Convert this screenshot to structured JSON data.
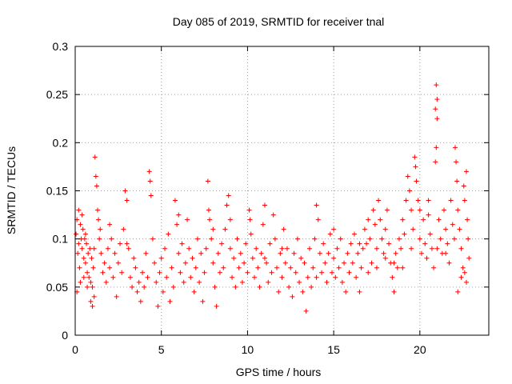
{
  "chart_data": {
    "type": "scatter",
    "title": "Day 085 of 2019, SRMTID for receiver tnal",
    "xlabel": "GPS time / hours",
    "ylabel": "SRMTID / TECUs",
    "xlim": [
      0,
      24
    ],
    "ylim": [
      0,
      0.3
    ],
    "xticks": [
      0,
      5,
      10,
      15,
      20
    ],
    "xtick_labels": [
      "0",
      "5",
      "10",
      "15",
      "20"
    ],
    "yticks": [
      0,
      0.05,
      0.1,
      0.15,
      0.2,
      0.25,
      0.3
    ],
    "ytick_labels": [
      "0",
      "0.05",
      "0.1",
      "0.15",
      "0.2",
      "0.25",
      "0.3"
    ],
    "grid": true,
    "marker": "+",
    "color": "#ff0000",
    "series": [
      {
        "name": "SRMTID",
        "points": [
          [
            0.05,
            0.105
          ],
          [
            0.1,
            0.12
          ],
          [
            0.15,
            0.085
          ],
          [
            0.2,
            0.095
          ],
          [
            0.25,
            0.07
          ],
          [
            0.3,
            0.115
          ],
          [
            0.35,
            0.1
          ],
          [
            0.4,
            0.09
          ],
          [
            0.45,
            0.11
          ],
          [
            0.5,
            0.08
          ],
          [
            0.55,
            0.1
          ],
          [
            0.6,
            0.075
          ],
          [
            0.65,
            0.095
          ],
          [
            0.7,
            0.065
          ],
          [
            0.75,
            0.085
          ],
          [
            0.8,
            0.06
          ],
          [
            0.85,
            0.09
          ],
          [
            0.9,
            0.055
          ],
          [
            0.95,
            0.08
          ],
          [
            1.0,
            0.05
          ],
          [
            1.05,
            0.07
          ],
          [
            1.1,
            0.09
          ],
          [
            1.15,
            0.185
          ],
          [
            1.2,
            0.165
          ],
          [
            1.25,
            0.155
          ],
          [
            1.3,
            0.13
          ],
          [
            1.35,
            0.12
          ],
          [
            1.4,
            0.1
          ],
          [
            1.45,
            0.11
          ],
          [
            1.5,
            0.085
          ],
          [
            0.1,
            0.045
          ],
          [
            0.3,
            0.055
          ],
          [
            0.5,
            0.06
          ],
          [
            0.7,
            0.05
          ],
          [
            0.9,
            0.035
          ],
          [
            1.0,
            0.03
          ],
          [
            1.1,
            0.04
          ],
          [
            0.2,
            0.13
          ],
          [
            0.4,
            0.125
          ],
          [
            0.6,
            0.105
          ],
          [
            1.6,
            0.065
          ],
          [
            1.7,
            0.075
          ],
          [
            1.8,
            0.055
          ],
          [
            1.9,
            0.09
          ],
          [
            2.0,
            0.07
          ],
          [
            2.1,
            0.1
          ],
          [
            2.2,
            0.06
          ],
          [
            2.3,
            0.085
          ],
          [
            2.4,
            0.04
          ],
          [
            2.5,
            0.075
          ],
          [
            2.6,
            0.095
          ],
          [
            2.7,
            0.065
          ],
          [
            2.8,
            0.11
          ],
          [
            2.9,
            0.15
          ],
          [
            3.0,
            0.14
          ],
          [
            3.1,
            0.09
          ],
          [
            3.2,
            0.06
          ],
          [
            3.3,
            0.05
          ],
          [
            3.4,
            0.08
          ],
          [
            3.5,
            0.07
          ],
          [
            3.6,
            0.045
          ],
          [
            3.7,
            0.055
          ],
          [
            3.8,
            0.035
          ],
          [
            3.9,
            0.065
          ],
          [
            4.0,
            0.05
          ],
          [
            4.1,
            0.085
          ],
          [
            4.2,
            0.06
          ],
          [
            4.3,
            0.17
          ],
          [
            4.35,
            0.16
          ],
          [
            4.4,
            0.145
          ],
          [
            4.5,
            0.1
          ],
          [
            4.6,
            0.075
          ],
          [
            4.7,
            0.055
          ],
          [
            4.8,
            0.03
          ],
          [
            4.9,
            0.065
          ],
          [
            5.0,
            0.08
          ],
          [
            5.1,
            0.045
          ],
          [
            5.2,
            0.09
          ],
          [
            5.3,
            0.06
          ],
          [
            5.4,
            0.105
          ],
          [
            5.5,
            0.035
          ],
          [
            5.6,
            0.07
          ],
          [
            5.7,
            0.05
          ],
          [
            5.8,
            0.14
          ],
          [
            5.9,
            0.115
          ],
          [
            6.0,
            0.085
          ],
          [
            6.1,
            0.065
          ],
          [
            6.2,
            0.095
          ],
          [
            6.3,
            0.055
          ],
          [
            6.4,
            0.075
          ],
          [
            6.5,
            0.12
          ],
          [
            6.6,
            0.09
          ],
          [
            6.7,
            0.06
          ],
          [
            6.8,
            0.08
          ],
          [
            6.9,
            0.045
          ],
          [
            7.0,
            0.07
          ],
          [
            7.1,
            0.1
          ],
          [
            7.2,
            0.055
          ],
          [
            7.3,
            0.085
          ],
          [
            7.4,
            0.035
          ],
          [
            7.5,
            0.065
          ],
          [
            7.6,
            0.09
          ],
          [
            7.7,
            0.16
          ],
          [
            7.75,
            0.13
          ],
          [
            7.8,
            0.12
          ],
          [
            7.9,
            0.1
          ],
          [
            8.0,
            0.075
          ],
          [
            8.1,
            0.05
          ],
          [
            8.2,
            0.03
          ],
          [
            8.3,
            0.085
          ],
          [
            8.4,
            0.065
          ],
          [
            8.5,
            0.095
          ],
          [
            8.6,
            0.07
          ],
          [
            8.7,
            0.11
          ],
          [
            8.8,
            0.135
          ],
          [
            8.9,
            0.145
          ],
          [
            9.0,
            0.09
          ],
          [
            9.1,
            0.06
          ],
          [
            9.2,
            0.08
          ],
          [
            9.3,
            0.05
          ],
          [
            9.4,
            0.1
          ],
          [
            9.5,
            0.07
          ],
          [
            9.6,
            0.085
          ],
          [
            9.7,
            0.055
          ],
          [
            9.8,
            0.075
          ],
          [
            9.9,
            0.095
          ],
          [
            10.0,
            0.065
          ],
          [
            10.1,
            0.13
          ],
          [
            10.15,
            0.12
          ],
          [
            10.2,
            0.105
          ],
          [
            10.3,
            0.08
          ],
          [
            10.4,
            0.06
          ],
          [
            10.5,
            0.09
          ],
          [
            10.6,
            0.07
          ],
          [
            10.7,
            0.05
          ],
          [
            10.8,
            0.085
          ],
          [
            10.9,
            0.115
          ],
          [
            11.0,
            0.135
          ],
          [
            11.1,
            0.075
          ],
          [
            11.2,
            0.055
          ],
          [
            11.3,
            0.095
          ],
          [
            11.4,
            0.065
          ],
          [
            11.5,
            0.125
          ],
          [
            11.6,
            0.1
          ],
          [
            11.7,
            0.07
          ],
          [
            11.8,
            0.045
          ],
          [
            11.9,
            0.085
          ],
          [
            12.0,
            0.06
          ],
          [
            12.1,
            0.11
          ],
          [
            12.2,
            0.075
          ],
          [
            12.3,
            0.09
          ],
          [
            12.4,
            0.05
          ],
          [
            12.5,
            0.07
          ],
          [
            12.6,
            0.04
          ],
          [
            12.7,
            0.085
          ],
          [
            12.8,
            0.065
          ],
          [
            12.9,
            0.1
          ],
          [
            13.0,
            0.055
          ],
          [
            13.1,
            0.08
          ],
          [
            13.2,
            0.045
          ],
          [
            13.3,
            0.075
          ],
          [
            13.4,
            0.025
          ],
          [
            13.5,
            0.06
          ],
          [
            13.6,
            0.09
          ],
          [
            13.7,
            0.05
          ],
          [
            13.8,
            0.07
          ],
          [
            13.9,
            0.1
          ],
          [
            14.0,
            0.135
          ],
          [
            14.1,
            0.12
          ],
          [
            14.2,
            0.085
          ],
          [
            14.3,
            0.065
          ],
          [
            14.4,
            0.095
          ],
          [
            14.5,
            0.075
          ],
          [
            14.6,
            0.055
          ],
          [
            14.7,
            0.085
          ],
          [
            14.8,
            0.105
          ],
          [
            14.9,
            0.065
          ],
          [
            15.0,
            0.08
          ],
          [
            15.1,
            0.06
          ],
          [
            15.2,
            0.09
          ],
          [
            15.3,
            0.07
          ],
          [
            15.4,
            0.1
          ],
          [
            15.5,
            0.055
          ],
          [
            15.6,
            0.075
          ],
          [
            15.7,
            0.045
          ],
          [
            15.8,
            0.085
          ],
          [
            15.9,
            0.065
          ],
          [
            16.0,
            0.095
          ],
          [
            16.1,
            0.075
          ],
          [
            16.2,
            0.105
          ],
          [
            16.3,
            0.06
          ],
          [
            16.4,
            0.085
          ],
          [
            16.5,
            0.045
          ],
          [
            16.6,
            0.07
          ],
          [
            16.7,
            0.09
          ],
          [
            16.8,
            0.11
          ],
          [
            16.9,
            0.095
          ],
          [
            17.0,
            0.12
          ],
          [
            17.1,
            0.1
          ],
          [
            17.2,
            0.075
          ],
          [
            17.3,
            0.13
          ],
          [
            17.4,
            0.115
          ],
          [
            17.5,
            0.09
          ],
          [
            17.6,
            0.14
          ],
          [
            17.7,
            0.12
          ],
          [
            17.8,
            0.1
          ],
          [
            17.9,
            0.085
          ],
          [
            18.0,
            0.11
          ],
          [
            18.1,
            0.13
          ],
          [
            18.2,
            0.095
          ],
          [
            18.3,
            0.075
          ],
          [
            18.4,
            0.06
          ],
          [
            18.5,
            0.045
          ],
          [
            18.6,
            0.085
          ],
          [
            18.7,
            0.07
          ],
          [
            18.8,
            0.1
          ],
          [
            18.9,
            0.09
          ],
          [
            19.0,
            0.12
          ],
          [
            19.1,
            0.105
          ],
          [
            19.2,
            0.14
          ],
          [
            19.3,
            0.165
          ],
          [
            19.4,
            0.15
          ],
          [
            19.5,
            0.13
          ],
          [
            19.6,
            0.11
          ],
          [
            19.7,
            0.185
          ],
          [
            19.75,
            0.175
          ],
          [
            19.8,
            0.16
          ],
          [
            19.9,
            0.14
          ],
          [
            20.0,
            0.1
          ],
          [
            20.1,
            0.085
          ],
          [
            20.2,
            0.12
          ],
          [
            20.3,
            0.095
          ],
          [
            20.4,
            0.08
          ],
          [
            20.5,
            0.14
          ],
          [
            20.6,
            0.105
          ],
          [
            20.7,
            0.09
          ],
          [
            20.8,
            0.07
          ],
          [
            20.9,
            0.235
          ],
          [
            20.95,
            0.26
          ],
          [
            21.0,
            0.245
          ],
          [
            21.0,
            0.225
          ],
          [
            20.95,
            0.195
          ],
          [
            20.9,
            0.18
          ],
          [
            21.1,
            0.12
          ],
          [
            21.2,
            0.1
          ],
          [
            21.3,
            0.085
          ],
          [
            21.4,
            0.13
          ],
          [
            21.5,
            0.11
          ],
          [
            21.6,
            0.095
          ],
          [
            21.7,
            0.075
          ],
          [
            21.8,
            0.14
          ],
          [
            21.9,
            0.115
          ],
          [
            22.0,
            0.1
          ],
          [
            22.05,
            0.195
          ],
          [
            22.1,
            0.18
          ],
          [
            22.15,
            0.16
          ],
          [
            22.2,
            0.13
          ],
          [
            22.3,
            0.11
          ],
          [
            22.4,
            0.09
          ],
          [
            22.5,
            0.07
          ],
          [
            22.55,
            0.155
          ],
          [
            22.6,
            0.14
          ],
          [
            22.7,
            0.17
          ],
          [
            22.75,
            0.12
          ],
          [
            22.8,
            0.1
          ],
          [
            22.85,
            0.08
          ],
          [
            22.7,
            0.055
          ],
          [
            22.6,
            0.065
          ],
          [
            22.2,
            0.045
          ],
          [
            22.4,
            0.06
          ],
          [
            17.0,
            0.065
          ],
          [
            17.5,
            0.07
          ],
          [
            18.0,
            0.08
          ],
          [
            18.5,
            0.075
          ],
          [
            19.0,
            0.07
          ],
          [
            19.5,
            0.09
          ],
          [
            20.0,
            0.13
          ],
          [
            20.5,
            0.125
          ],
          [
            21.0,
            0.09
          ],
          [
            21.5,
            0.085
          ],
          [
            3.0,
            0.095
          ],
          [
            6.0,
            0.125
          ],
          [
            9.0,
            0.12
          ],
          [
            12.0,
            0.09
          ],
          [
            15.0,
            0.11
          ],
          [
            16.5,
            0.095
          ],
          [
            2.0,
            0.115
          ],
          [
            8.0,
            0.11
          ],
          [
            11.0,
            0.08
          ],
          [
            14.0,
            0.06
          ]
        ]
      }
    ]
  }
}
